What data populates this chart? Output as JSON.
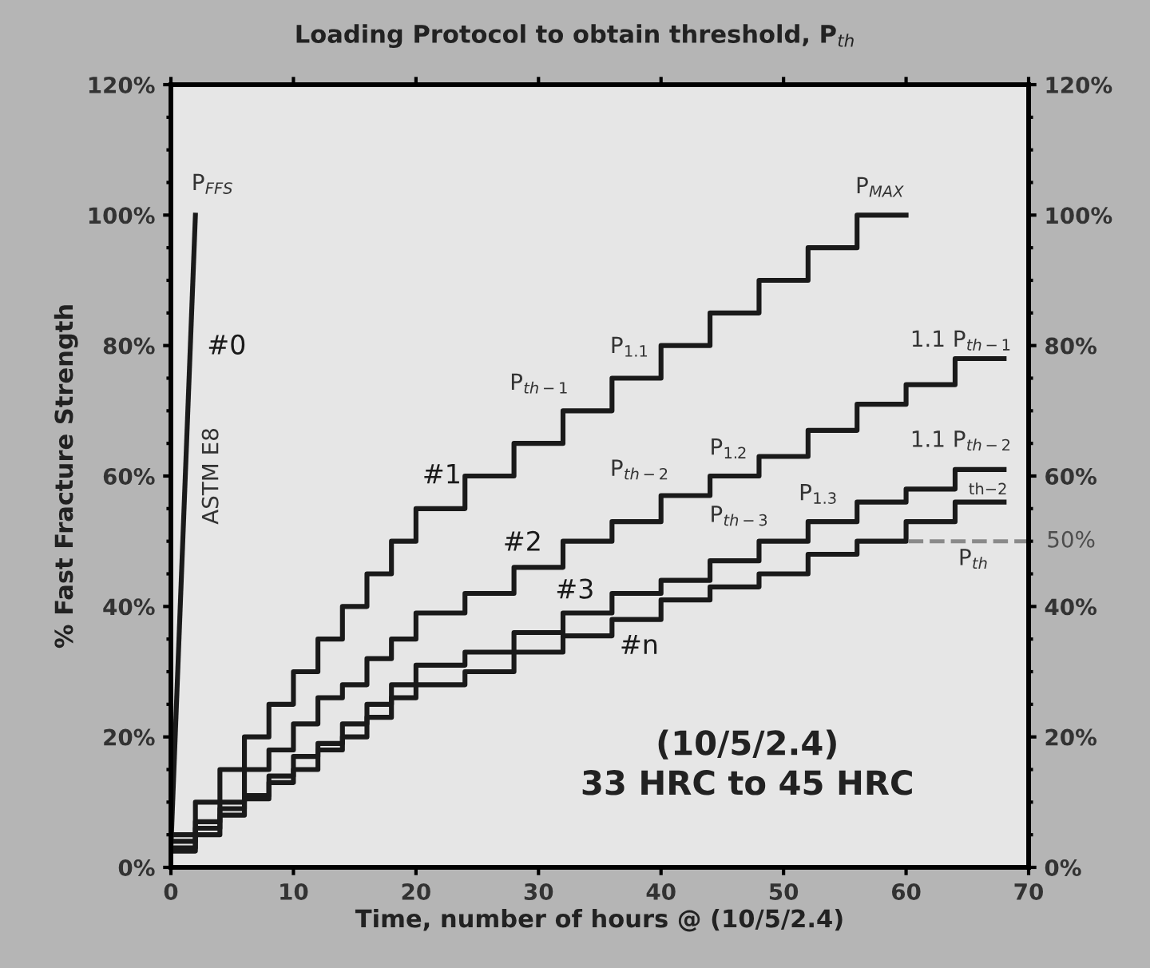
{
  "chart_data": {
    "type": "step",
    "title": "Loading Protocol to obtain threshold, P$_{th}$",
    "xlabel": "Time, number of hours @ (10/5/2.4)",
    "ylabel": "% Fast Fracture Strength",
    "xlim": [
      0,
      70
    ],
    "xticks": [
      0,
      10,
      20,
      30,
      40,
      50,
      60,
      70
    ],
    "ylim": [
      0,
      120
    ],
    "yticks": [
      {
        "value": 0,
        "label": "0%"
      },
      {
        "value": 20,
        "label": "20%"
      },
      {
        "value": 40,
        "label": "40%"
      },
      {
        "value": 60,
        "label": "60%"
      },
      {
        "value": 80,
        "label": "80%"
      },
      {
        "value": 100,
        "label": "100%"
      },
      {
        "value": 120,
        "label": "120%"
      }
    ],
    "y2lim": [
      0,
      120
    ],
    "y2ticks": [
      {
        "value": 0,
        "label": "0%"
      },
      {
        "value": 20,
        "label": "20%"
      },
      {
        "value": 40,
        "label": "40%"
      },
      {
        "value": 60,
        "label": "60%"
      },
      {
        "value": 80,
        "label": "80%"
      },
      {
        "value": 100,
        "label": "100%"
      },
      {
        "value": 120,
        "label": "120%"
      }
    ],
    "grid": false,
    "legend": false,
    "series": [
      {
        "name": "#0",
        "type": "line",
        "color": "#1a1a1a",
        "x": [
          0,
          2
        ],
        "values": [
          3,
          100
        ]
      },
      {
        "name": "#1",
        "color": "#1a1a1a",
        "x": [
          0,
          2,
          4,
          6,
          8,
          10,
          12,
          14,
          16,
          18,
          20,
          24,
          28,
          32,
          36,
          40,
          44,
          48,
          52,
          56,
          60
        ],
        "values": [
          5,
          10,
          15,
          20,
          25,
          30,
          35,
          40,
          45,
          50,
          55,
          60,
          65,
          70,
          75,
          80,
          85,
          90,
          95,
          100,
          100
        ]
      },
      {
        "name": "#2",
        "color": "#1a1a1a",
        "x": [
          0,
          2,
          4,
          6,
          8,
          10,
          12,
          14,
          16,
          18,
          20,
          24,
          28,
          32,
          36,
          40,
          44,
          48,
          52,
          56,
          60,
          64,
          68
        ],
        "values": [
          4,
          7,
          10,
          15,
          18,
          22,
          26,
          28,
          32,
          35,
          39,
          42,
          46,
          50,
          53,
          57,
          60,
          63,
          67,
          71,
          74,
          78,
          78
        ]
      },
      {
        "name": "#3",
        "color": "#1a1a1a",
        "x": [
          0,
          2,
          4,
          6,
          8,
          10,
          12,
          14,
          16,
          18,
          20,
          24,
          28,
          32,
          36,
          40,
          44,
          48,
          52,
          56,
          60,
          64,
          68
        ],
        "values": [
          3,
          6,
          9,
          11,
          14,
          17,
          19,
          22,
          25,
          28,
          31,
          33,
          36,
          39,
          42,
          44,
          47,
          50,
          53,
          56,
          58,
          61,
          61
        ]
      },
      {
        "name": "#n",
        "color": "#1a1a1a",
        "x": [
          0,
          2,
          4,
          6,
          8,
          10,
          12,
          14,
          16,
          18,
          20,
          24,
          28,
          32,
          36,
          40,
          44,
          48,
          52,
          56,
          60,
          64,
          68
        ],
        "values": [
          2.5,
          5,
          8,
          10.5,
          13,
          15,
          18,
          20,
          23,
          26,
          28,
          30,
          33,
          35.5,
          38,
          41,
          43,
          45,
          48,
          50,
          53,
          56,
          56
        ]
      }
    ],
    "ref_lines": [
      {
        "axis": "y",
        "value": 50,
        "label": "50%",
        "color": "#8a8a8a",
        "line_style": "dashed"
      }
    ],
    "annotations": [
      "P$_{FFS}$",
      "ASTM E8",
      "P$_{th−1}$",
      "P$_{1.1}$",
      "P$_{MAX}$",
      "1.1 P$_{th−1}$",
      "P$_{th−2}$",
      "P$_{1.2}$",
      "P$_{th−3}$",
      "P$_{1.3}$",
      "1.1 P$_{th−2}$",
      "th−2",
      "P$_{th}$",
      "(10/5/2.4)\n33 HRC to 45 HRC"
    ]
  }
}
